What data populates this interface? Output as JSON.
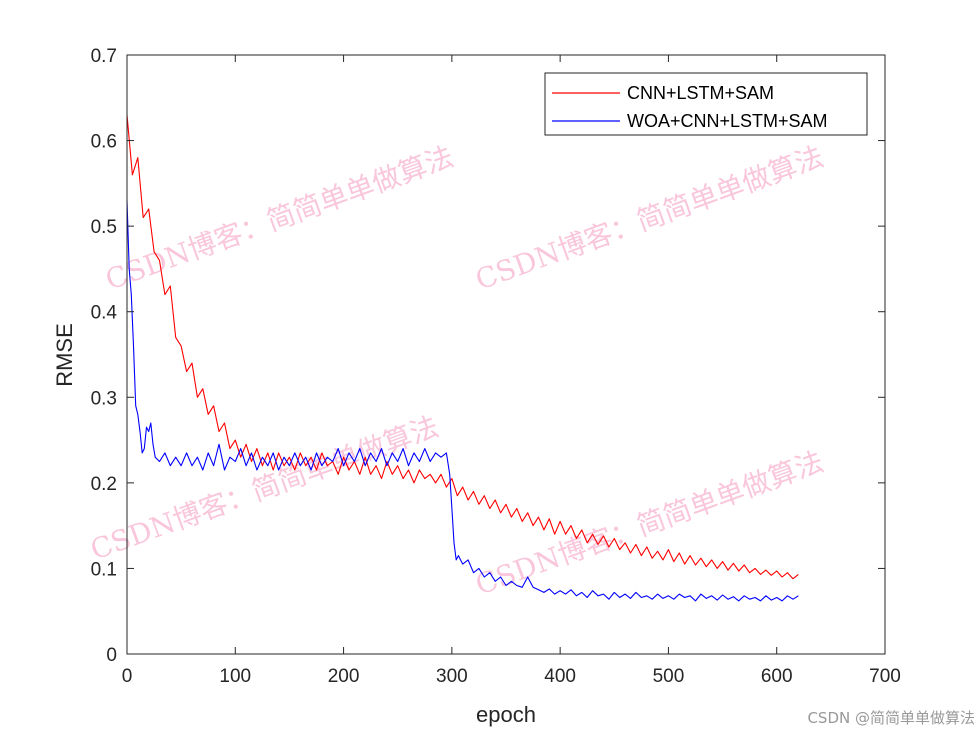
{
  "chart_data": {
    "type": "line",
    "title": "",
    "xlabel": "epoch",
    "ylabel": "RMSE",
    "xlim": [
      0,
      700
    ],
    "ylim": [
      0,
      0.7
    ],
    "xticks": [
      0,
      100,
      200,
      300,
      400,
      500,
      600,
      700
    ],
    "yticks": [
      0,
      0.1,
      0.2,
      0.3,
      0.4,
      0.5,
      0.6,
      0.7
    ],
    "xtick_labels": [
      "0",
      "100",
      "200",
      "300",
      "400",
      "500",
      "600",
      "700"
    ],
    "ytick_labels": [
      "0",
      "0.1",
      "0.2",
      "0.3",
      "0.4",
      "0.5",
      "0.6",
      "0.7"
    ],
    "grid": false,
    "legend_position": "top-right",
    "series": [
      {
        "name": "CNN+LSTM+SAM",
        "color": "#ff0000",
        "points": [
          [
            0,
            0.63
          ],
          [
            5,
            0.56
          ],
          [
            10,
            0.58
          ],
          [
            15,
            0.51
          ],
          [
            20,
            0.52
          ],
          [
            25,
            0.47
          ],
          [
            30,
            0.46
          ],
          [
            35,
            0.42
          ],
          [
            40,
            0.43
          ],
          [
            45,
            0.37
          ],
          [
            50,
            0.36
          ],
          [
            55,
            0.33
          ],
          [
            60,
            0.34
          ],
          [
            65,
            0.3
          ],
          [
            70,
            0.31
          ],
          [
            75,
            0.28
          ],
          [
            80,
            0.29
          ],
          [
            85,
            0.26
          ],
          [
            90,
            0.27
          ],
          [
            95,
            0.24
          ],
          [
            100,
            0.25
          ],
          [
            105,
            0.23
          ],
          [
            110,
            0.245
          ],
          [
            115,
            0.225
          ],
          [
            120,
            0.24
          ],
          [
            125,
            0.22
          ],
          [
            130,
            0.235
          ],
          [
            135,
            0.215
          ],
          [
            140,
            0.235
          ],
          [
            145,
            0.22
          ],
          [
            150,
            0.23
          ],
          [
            155,
            0.215
          ],
          [
            160,
            0.235
          ],
          [
            165,
            0.22
          ],
          [
            170,
            0.23
          ],
          [
            175,
            0.215
          ],
          [
            180,
            0.235
          ],
          [
            185,
            0.22
          ],
          [
            190,
            0.225
          ],
          [
            195,
            0.21
          ],
          [
            200,
            0.23
          ],
          [
            205,
            0.215
          ],
          [
            210,
            0.225
          ],
          [
            215,
            0.21
          ],
          [
            220,
            0.23
          ],
          [
            225,
            0.21
          ],
          [
            230,
            0.22
          ],
          [
            235,
            0.205
          ],
          [
            240,
            0.225
          ],
          [
            245,
            0.21
          ],
          [
            250,
            0.22
          ],
          [
            255,
            0.205
          ],
          [
            260,
            0.215
          ],
          [
            265,
            0.2
          ],
          [
            270,
            0.215
          ],
          [
            275,
            0.205
          ],
          [
            280,
            0.21
          ],
          [
            285,
            0.2
          ],
          [
            290,
            0.21
          ],
          [
            295,
            0.195
          ],
          [
            300,
            0.205
          ],
          [
            305,
            0.185
          ],
          [
            310,
            0.195
          ],
          [
            315,
            0.18
          ],
          [
            320,
            0.19
          ],
          [
            325,
            0.175
          ],
          [
            330,
            0.185
          ],
          [
            335,
            0.17
          ],
          [
            340,
            0.18
          ],
          [
            345,
            0.165
          ],
          [
            350,
            0.175
          ],
          [
            355,
            0.16
          ],
          [
            360,
            0.17
          ],
          [
            365,
            0.155
          ],
          [
            370,
            0.165
          ],
          [
            375,
            0.15
          ],
          [
            380,
            0.16
          ],
          [
            385,
            0.145
          ],
          [
            390,
            0.158
          ],
          [
            395,
            0.14
          ],
          [
            400,
            0.155
          ],
          [
            405,
            0.14
          ],
          [
            410,
            0.15
          ],
          [
            415,
            0.135
          ],
          [
            420,
            0.145
          ],
          [
            425,
            0.13
          ],
          [
            430,
            0.14
          ],
          [
            435,
            0.128
          ],
          [
            440,
            0.138
          ],
          [
            445,
            0.125
          ],
          [
            450,
            0.135
          ],
          [
            455,
            0.122
          ],
          [
            460,
            0.13
          ],
          [
            465,
            0.118
          ],
          [
            470,
            0.128
          ],
          [
            475,
            0.115
          ],
          [
            480,
            0.125
          ],
          [
            485,
            0.112
          ],
          [
            490,
            0.12
          ],
          [
            495,
            0.11
          ],
          [
            500,
            0.122
          ],
          [
            505,
            0.108
          ],
          [
            510,
            0.118
          ],
          [
            515,
            0.105
          ],
          [
            520,
            0.115
          ],
          [
            525,
            0.104
          ],
          [
            530,
            0.112
          ],
          [
            535,
            0.102
          ],
          [
            540,
            0.11
          ],
          [
            545,
            0.1
          ],
          [
            550,
            0.108
          ],
          [
            555,
            0.098
          ],
          [
            560,
            0.106
          ],
          [
            565,
            0.097
          ],
          [
            570,
            0.104
          ],
          [
            575,
            0.095
          ],
          [
            580,
            0.1
          ],
          [
            585,
            0.093
          ],
          [
            590,
            0.098
          ],
          [
            595,
            0.092
          ],
          [
            600,
            0.097
          ],
          [
            605,
            0.09
          ],
          [
            610,
            0.095
          ],
          [
            615,
            0.088
          ],
          [
            620,
            0.093
          ]
        ]
      },
      {
        "name": "WOA+CNN+LSTM+SAM",
        "color": "#0000ff",
        "points": [
          [
            0,
            0.53
          ],
          [
            2,
            0.45
          ],
          [
            4,
            0.42
          ],
          [
            6,
            0.36
          ],
          [
            8,
            0.29
          ],
          [
            10,
            0.28
          ],
          [
            12,
            0.26
          ],
          [
            14,
            0.235
          ],
          [
            16,
            0.24
          ],
          [
            18,
            0.265
          ],
          [
            20,
            0.26
          ],
          [
            22,
            0.27
          ],
          [
            24,
            0.245
          ],
          [
            26,
            0.23
          ],
          [
            30,
            0.225
          ],
          [
            35,
            0.235
          ],
          [
            40,
            0.22
          ],
          [
            45,
            0.23
          ],
          [
            50,
            0.22
          ],
          [
            55,
            0.235
          ],
          [
            60,
            0.22
          ],
          [
            65,
            0.23
          ],
          [
            70,
            0.215
          ],
          [
            75,
            0.235
          ],
          [
            80,
            0.22
          ],
          [
            85,
            0.245
          ],
          [
            90,
            0.215
          ],
          [
            95,
            0.23
          ],
          [
            100,
            0.225
          ],
          [
            105,
            0.24
          ],
          [
            110,
            0.22
          ],
          [
            115,
            0.235
          ],
          [
            120,
            0.215
          ],
          [
            125,
            0.23
          ],
          [
            130,
            0.22
          ],
          [
            135,
            0.235
          ],
          [
            140,
            0.215
          ],
          [
            145,
            0.23
          ],
          [
            150,
            0.22
          ],
          [
            155,
            0.235
          ],
          [
            160,
            0.22
          ],
          [
            165,
            0.23
          ],
          [
            170,
            0.215
          ],
          [
            175,
            0.235
          ],
          [
            180,
            0.22
          ],
          [
            185,
            0.23
          ],
          [
            190,
            0.225
          ],
          [
            195,
            0.24
          ],
          [
            200,
            0.22
          ],
          [
            205,
            0.235
          ],
          [
            210,
            0.225
          ],
          [
            215,
            0.24
          ],
          [
            220,
            0.22
          ],
          [
            225,
            0.235
          ],
          [
            230,
            0.225
          ],
          [
            235,
            0.24
          ],
          [
            240,
            0.22
          ],
          [
            245,
            0.235
          ],
          [
            250,
            0.225
          ],
          [
            255,
            0.24
          ],
          [
            260,
            0.22
          ],
          [
            265,
            0.235
          ],
          [
            270,
            0.225
          ],
          [
            275,
            0.24
          ],
          [
            280,
            0.225
          ],
          [
            285,
            0.235
          ],
          [
            290,
            0.23
          ],
          [
            295,
            0.235
          ],
          [
            298,
            0.21
          ],
          [
            300,
            0.17
          ],
          [
            302,
            0.13
          ],
          [
            304,
            0.11
          ],
          [
            306,
            0.115
          ],
          [
            310,
            0.105
          ],
          [
            315,
            0.11
          ],
          [
            320,
            0.095
          ],
          [
            325,
            0.1
          ],
          [
            330,
            0.09
          ],
          [
            335,
            0.095
          ],
          [
            340,
            0.085
          ],
          [
            345,
            0.09
          ],
          [
            350,
            0.08
          ],
          [
            355,
            0.085
          ],
          [
            360,
            0.08
          ],
          [
            365,
            0.078
          ],
          [
            370,
            0.09
          ],
          [
            375,
            0.078
          ],
          [
            380,
            0.075
          ],
          [
            385,
            0.072
          ],
          [
            390,
            0.076
          ],
          [
            395,
            0.07
          ],
          [
            400,
            0.074
          ],
          [
            405,
            0.07
          ],
          [
            410,
            0.075
          ],
          [
            415,
            0.068
          ],
          [
            420,
            0.072
          ],
          [
            425,
            0.066
          ],
          [
            430,
            0.074
          ],
          [
            435,
            0.068
          ],
          [
            440,
            0.07
          ],
          [
            445,
            0.064
          ],
          [
            450,
            0.072
          ],
          [
            455,
            0.066
          ],
          [
            460,
            0.07
          ],
          [
            465,
            0.065
          ],
          [
            470,
            0.072
          ],
          [
            475,
            0.066
          ],
          [
            480,
            0.068
          ],
          [
            485,
            0.064
          ],
          [
            490,
            0.07
          ],
          [
            495,
            0.065
          ],
          [
            500,
            0.068
          ],
          [
            505,
            0.064
          ],
          [
            510,
            0.07
          ],
          [
            515,
            0.066
          ],
          [
            520,
            0.068
          ],
          [
            525,
            0.062
          ],
          [
            530,
            0.07
          ],
          [
            535,
            0.065
          ],
          [
            540,
            0.068
          ],
          [
            545,
            0.063
          ],
          [
            550,
            0.069
          ],
          [
            555,
            0.064
          ],
          [
            560,
            0.067
          ],
          [
            565,
            0.062
          ],
          [
            570,
            0.068
          ],
          [
            575,
            0.064
          ],
          [
            580,
            0.066
          ],
          [
            585,
            0.062
          ],
          [
            590,
            0.068
          ],
          [
            595,
            0.063
          ],
          [
            600,
            0.066
          ],
          [
            605,
            0.062
          ],
          [
            610,
            0.068
          ],
          [
            615,
            0.064
          ],
          [
            620,
            0.068
          ]
        ]
      }
    ]
  },
  "watermark": {
    "text": "CSDN博客：简简单单做算法",
    "color": "#f7b3cf"
  },
  "credit": "CSDN @简简单单做算法"
}
